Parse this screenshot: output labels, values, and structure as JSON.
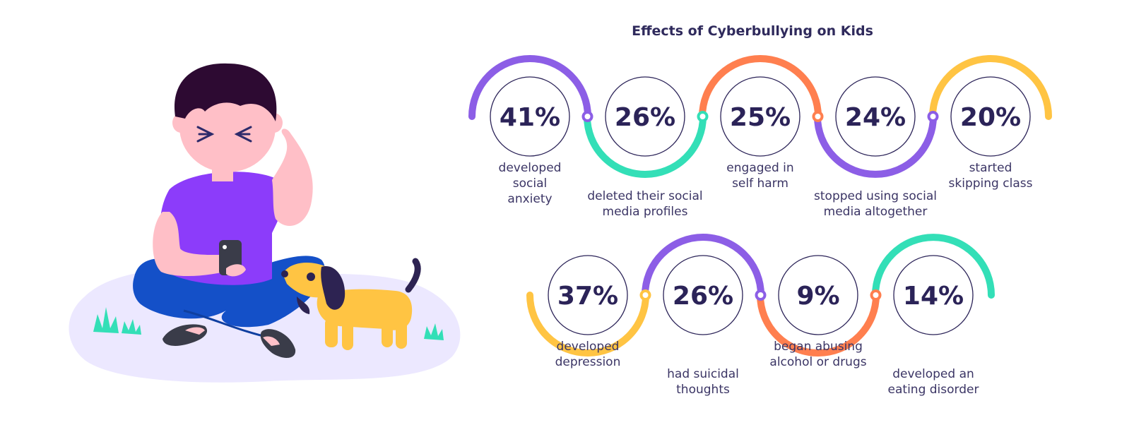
{
  "title": "Effects of Cyberbullying on Kids",
  "colors": {
    "purple": "#8c5ee6",
    "teal": "#33dfb7",
    "orange": "#ff7f4f",
    "yellow": "#ffc443",
    "text": "#2b2358"
  },
  "chart_data": {
    "type": "infographic",
    "title": "Effects of Cyberbullying on Kids",
    "rows": [
      {
        "items": [
          {
            "value": 41,
            "label": "41%",
            "text": [
              "developed",
              "social",
              "anxiety"
            ],
            "arc": "purple"
          },
          {
            "value": 26,
            "label": "26%",
            "text": [
              "deleted their social",
              "media profiles"
            ],
            "arc": "teal"
          },
          {
            "value": 25,
            "label": "25%",
            "text": [
              "engaged in",
              "self harm"
            ],
            "arc": "orange"
          },
          {
            "value": 24,
            "label": "24%",
            "text": [
              "stopped using social",
              "media altogether"
            ],
            "arc": "purple"
          },
          {
            "value": 20,
            "label": "20%",
            "text": [
              "started",
              "skipping class"
            ],
            "arc": "yellow"
          }
        ]
      },
      {
        "items": [
          {
            "value": 37,
            "label": "37%",
            "text": [
              "developed",
              "depression"
            ],
            "arc": "yellow"
          },
          {
            "value": 26,
            "label": "26%",
            "text": [
              "had suicidal",
              "thoughts"
            ],
            "arc": "purple"
          },
          {
            "value": 9,
            "label": "9%",
            "text": [
              "began abusing",
              "alcohol or drugs"
            ],
            "arc": "orange"
          },
          {
            "value": 14,
            "label": "14%",
            "text": [
              "developed an",
              "eating disorder"
            ],
            "arc": "teal"
          }
        ]
      }
    ]
  }
}
